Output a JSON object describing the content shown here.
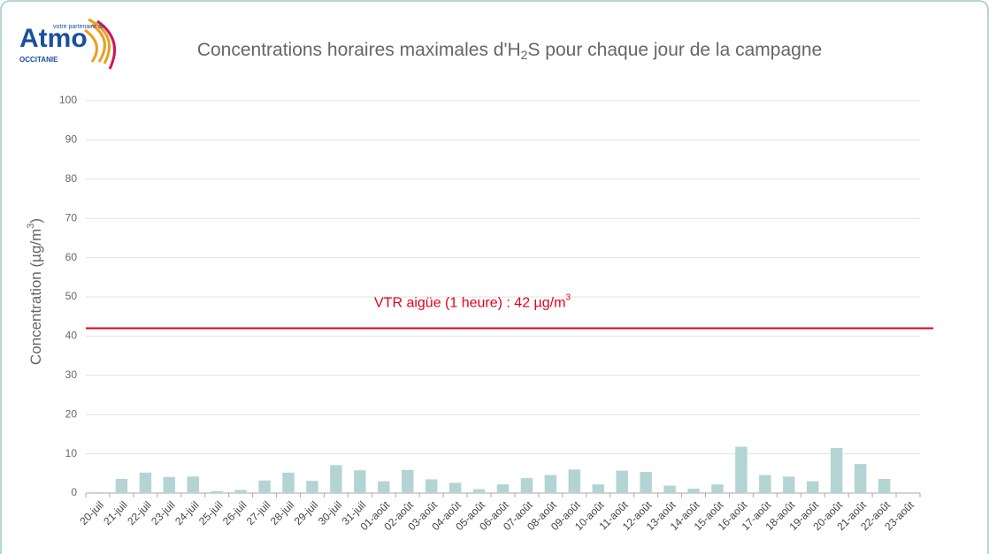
{
  "logo": {
    "name": "Atmo",
    "tagline": "votre partenaire air",
    "region": "OCCITANIE"
  },
  "chart_data": {
    "type": "bar",
    "title": [
      "Concentrations horaires maximales d'H",
      "2",
      "S pour chaque jour de la campagne"
    ],
    "y_label": [
      "Concentration (µg/m",
      "3",
      ")"
    ],
    "reference": {
      "value": 42,
      "color": "#e3001b",
      "label": [
        "VTR aigüe  (1 heure) : 42 µg/m",
        "3"
      ]
    },
    "categories": [
      "20-juil",
      "21-juil",
      "22-juil",
      "23-juil",
      "24-juil",
      "25-juil",
      "26-juil",
      "27-juil",
      "28-juil",
      "29-juil",
      "30-juil",
      "31-juil",
      "01-août",
      "02-août",
      "03-août",
      "04-août",
      "05-août",
      "06-août",
      "07-août",
      "08-août",
      "09-août",
      "10-août",
      "11-août",
      "12-août",
      "13-août",
      "14-août",
      "15-août",
      "16-août",
      "17-août",
      "18-août",
      "19-août",
      "20-août",
      "21-août",
      "22-août",
      "23-août"
    ],
    "values": [
      0.2,
      3.6,
      5.2,
      4.1,
      4.2,
      0.5,
      0.8,
      3.2,
      5.2,
      3.1,
      7.1,
      5.8,
      3.0,
      5.9,
      3.5,
      2.6,
      1.0,
      2.2,
      3.8,
      4.6,
      6.0,
      2.2,
      5.7,
      5.4,
      1.9,
      1.1,
      2.2,
      11.8,
      4.6,
      4.2,
      3.0,
      11.5,
      7.4,
      3.6,
      null
    ],
    "color": "#b4d4d4",
    "ylim": [
      0,
      100
    ],
    "yticks": [
      0,
      10,
      20,
      30,
      40,
      50,
      60,
      70,
      80,
      90,
      100
    ],
    "grid": true
  }
}
